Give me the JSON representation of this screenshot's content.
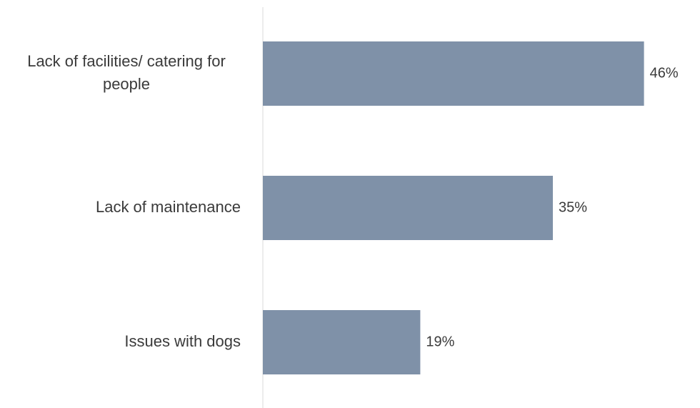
{
  "colors": {
    "bar": "#7f91a8",
    "axis": "#d9d9d9",
    "text": "#3a3a3a",
    "background": "#ffffff"
  },
  "chart_data": {
    "type": "bar",
    "orientation": "horizontal",
    "categories": [
      "Lack of facilities/ catering for people",
      "Lack of maintenance",
      "Issues with dogs"
    ],
    "category_lines": [
      [
        "Lack of facilities/ catering for",
        "people"
      ],
      [
        "Lack of maintenance"
      ],
      [
        "Issues with dogs"
      ]
    ],
    "values": [
      46,
      35,
      19
    ],
    "value_labels": [
      "46%",
      "35%",
      "19%"
    ],
    "xlim": [
      0,
      50
    ],
    "grid": false,
    "legend": "none"
  }
}
